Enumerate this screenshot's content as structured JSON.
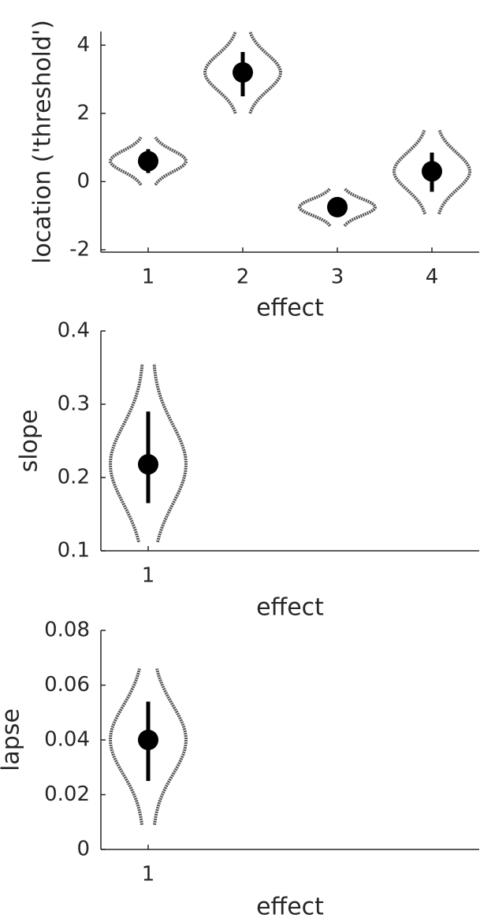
{
  "chart_data": [
    {
      "type": "violin",
      "xlabel": "effect",
      "ylabel": "location ('threshold')",
      "categories": [
        1,
        2,
        3,
        4
      ],
      "xlim": [
        0.5,
        4.5
      ],
      "xticks": [
        1,
        2,
        3,
        4
      ],
      "ylim": [
        -2.07,
        4.4
      ],
      "yticks": [
        -2,
        0,
        2,
        4
      ],
      "values": [
        0.6,
        3.2,
        -0.75,
        0.3
      ],
      "errors": [
        [
          0.25,
          0.95
        ],
        [
          2.5,
          3.8
        ],
        [
          -0.9,
          -0.6
        ],
        [
          -0.3,
          0.85
        ]
      ],
      "violin_range": [
        [
          -0.1,
          1.3
        ],
        [
          2.0,
          4.4
        ],
        [
          -1.3,
          -0.2
        ],
        [
          -0.95,
          1.5
        ]
      ],
      "color": "#000000",
      "violin_color": "#555555"
    },
    {
      "type": "violin",
      "xlabel": "effect",
      "ylabel": "slope",
      "categories": [
        1
      ],
      "xlim": [
        0.5,
        4.5
      ],
      "xticks": [
        1
      ],
      "ylim": [
        0.1,
        0.4
      ],
      "yticks": [
        0.1,
        0.2,
        0.3,
        0.4
      ],
      "values": [
        0.218
      ],
      "errors": [
        [
          0.165,
          0.29
        ]
      ],
      "violin_range": [
        [
          0.112,
          0.355
        ]
      ],
      "color": "#000000",
      "violin_color": "#555555"
    },
    {
      "type": "violin",
      "xlabel": "effect",
      "ylabel": "lapse",
      "categories": [
        1
      ],
      "xlim": [
        0.5,
        4.5
      ],
      "xticks": [
        1
      ],
      "ylim": [
        0,
        0.08
      ],
      "yticks": [
        0,
        0.02,
        0.04,
        0.06,
        0.08
      ],
      "values": [
        0.04
      ],
      "errors": [
        [
          0.025,
          0.054
        ]
      ],
      "violin_range": [
        [
          0.009,
          0.066
        ]
      ],
      "color": "#000000",
      "violin_color": "#555555"
    }
  ]
}
